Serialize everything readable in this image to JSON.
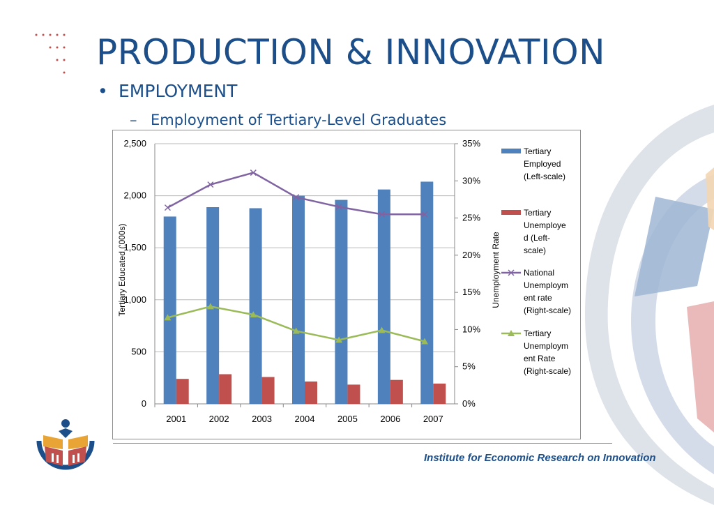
{
  "slide": {
    "title": "PRODUCTION & INNOVATION",
    "bullet": "EMPLOYMENT",
    "sub_bullet": "Employment of Tertiary-Level Graduates",
    "footer": "Institute for Economic Research on Innovation"
  },
  "colors": {
    "title": "#1c4f8a",
    "employed": "#4f81bd",
    "unemployed": "#c0504d",
    "national_rate": "#8064a2",
    "tertiary_rate": "#9bbb59"
  },
  "chart_data": {
    "type": "bar",
    "categories": [
      "2001",
      "2002",
      "2003",
      "2004",
      "2005",
      "2006",
      "2007"
    ],
    "ylabel": "Tertiary Educated ('000s)",
    "y2label": "Unemployment Rate",
    "ylim": [
      0,
      2500
    ],
    "y2lim": [
      0,
      0.35
    ],
    "yticks": [
      "0",
      "500",
      "1,000",
      "1,500",
      "2,000",
      "2,500"
    ],
    "y2ticks": [
      "0%",
      "5%",
      "10%",
      "15%",
      "20%",
      "25%",
      "30%",
      "35%"
    ],
    "grid": true,
    "legend_position": "right",
    "series": [
      {
        "name": "Tertiary Employed (Left-scale)",
        "type": "bar",
        "axis": "left",
        "values": [
          1800,
          1890,
          1880,
          2000,
          1960,
          2060,
          2135
        ]
      },
      {
        "name": "Tertiary Unemployed (Left-scale)",
        "type": "bar",
        "axis": "left",
        "values": [
          240,
          285,
          258,
          215,
          185,
          230,
          195
        ]
      },
      {
        "name": "National Unemployment rate (Right-scale)",
        "type": "line",
        "marker": "x",
        "axis": "right",
        "values": [
          0.264,
          0.295,
          0.311,
          0.278,
          0.265,
          0.255,
          0.255
        ]
      },
      {
        "name": "Tertiary Unemployment Rate (Right-scale)",
        "type": "line",
        "marker": "triangle",
        "axis": "right",
        "values": [
          0.116,
          0.131,
          0.12,
          0.098,
          0.086,
          0.099,
          0.084
        ]
      }
    ],
    "legend": [
      [
        "Tertiary",
        "Employed",
        "(Left-scale)"
      ],
      [
        "Tertiary",
        "Unemploye",
        "d (Left-",
        "scale)"
      ],
      [
        "National",
        "Unemploym",
        "ent rate",
        "(Right-scale)"
      ],
      [
        "Tertiary",
        "Unemploym",
        "ent Rate",
        "(Right-scale)"
      ]
    ]
  }
}
